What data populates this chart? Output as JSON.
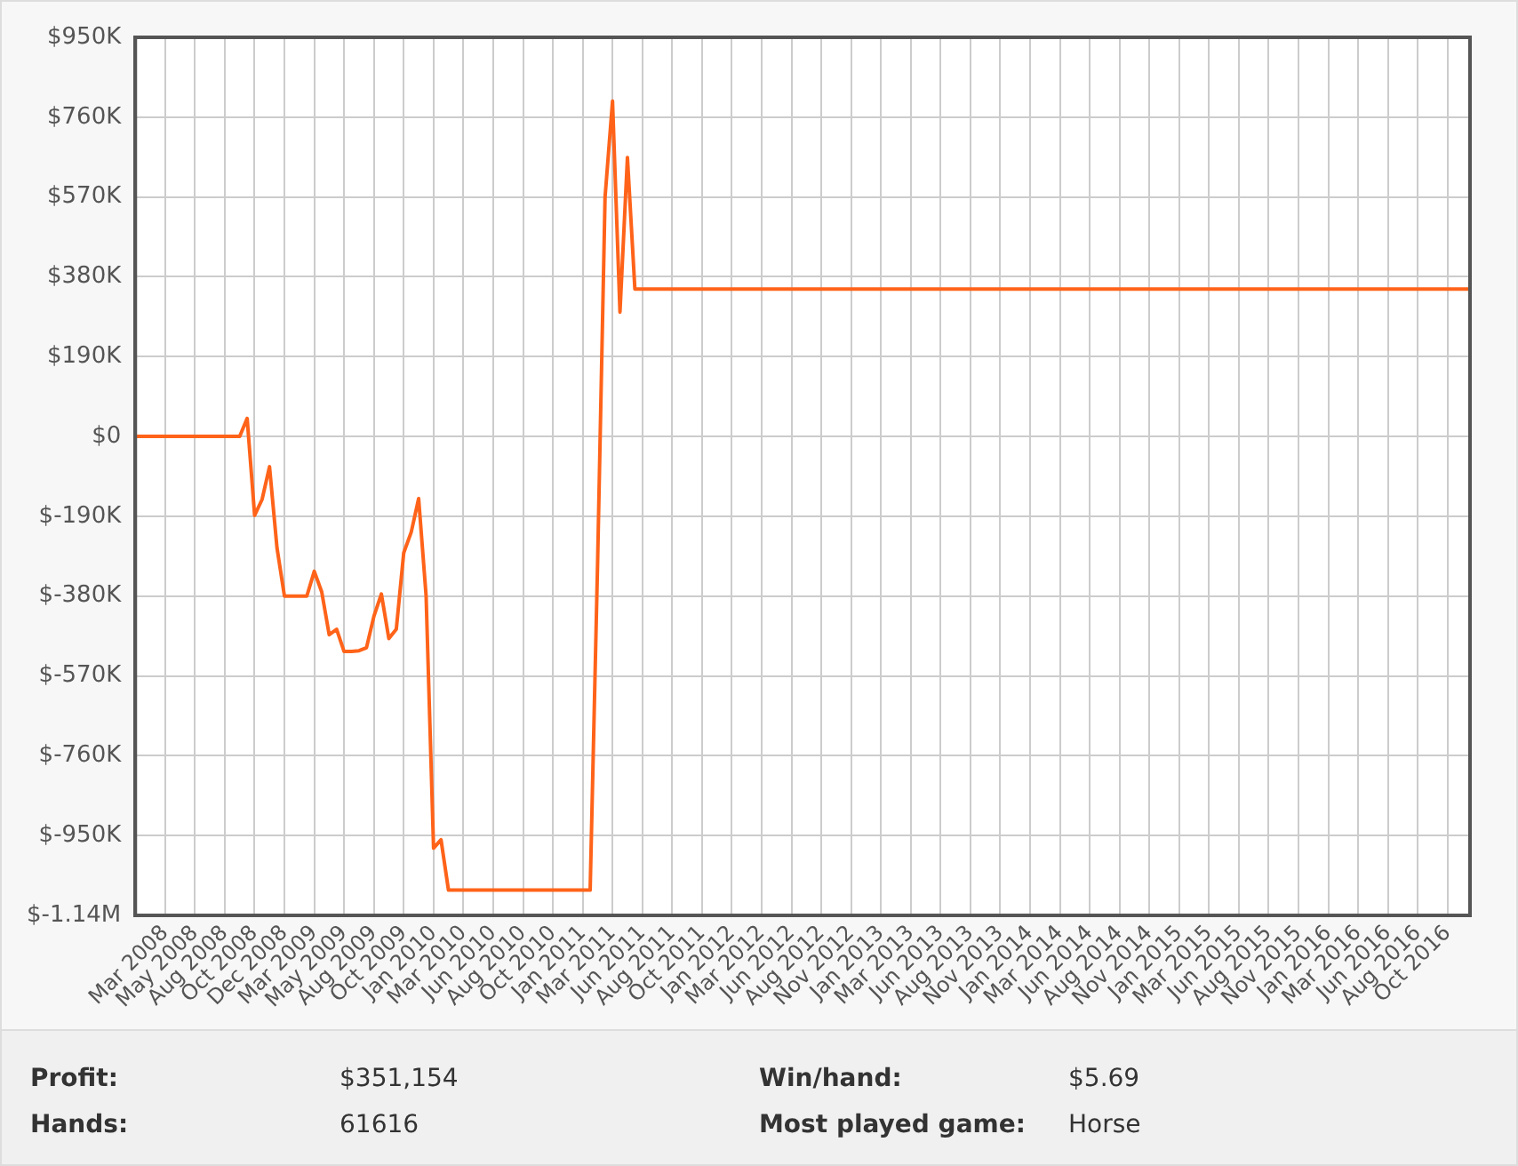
{
  "chart_data": {
    "type": "line",
    "categories": [
      null,
      null,
      null,
      null,
      "Mar 2008",
      null,
      null,
      null,
      "May 2008",
      null,
      null,
      null,
      "Aug 2008",
      null,
      null,
      null,
      "Oct 2008",
      null,
      null,
      null,
      "Dec 2008",
      null,
      null,
      null,
      "Mar 2009",
      null,
      null,
      null,
      "May 2009",
      null,
      null,
      null,
      "Aug 2009",
      null,
      null,
      null,
      "Oct 2009",
      null,
      null,
      null,
      "Jan 2010",
      null,
      null,
      null,
      "Mar 2010",
      null,
      null,
      null,
      "Jun 2010",
      null,
      null,
      null,
      "Aug 2010",
      null,
      null,
      null,
      "Oct 2010",
      null,
      null,
      null,
      "Jan 2011",
      null,
      null,
      null,
      "Mar 2011",
      null,
      null,
      null,
      "Jun 2011",
      null,
      null,
      null,
      "Aug 2011",
      null,
      null,
      null,
      "Oct 2011",
      null,
      null,
      null,
      "Jan 2012",
      null,
      null,
      null,
      "Mar 2012",
      null,
      null,
      null,
      "Jun 2012",
      null,
      null,
      null,
      "Aug 2012",
      null,
      null,
      null,
      "Nov 2012",
      null,
      null,
      null,
      "Jan 2013",
      null,
      null,
      null,
      "Mar 2013",
      null,
      null,
      null,
      "Jun 2013",
      null,
      null,
      null,
      "Aug 2013",
      null,
      null,
      null,
      "Nov 2013",
      null,
      null,
      null,
      "Jan 2014",
      null,
      null,
      null,
      "Mar 2014",
      null,
      null,
      null,
      "Jun 2014",
      null,
      null,
      null,
      "Aug 2014",
      null,
      null,
      null,
      "Nov 2014",
      null,
      null,
      null,
      "Jan 2015",
      null,
      null,
      null,
      "Mar 2015",
      null,
      null,
      null,
      "Jun 2015",
      null,
      null,
      null,
      "Aug 2015",
      null,
      null,
      null,
      "Nov 2015",
      null,
      null,
      null,
      "Jan 2016",
      null,
      null,
      null,
      "Mar 2016",
      null,
      null,
      null,
      "Jun 2016",
      null,
      null,
      null,
      "Aug 2016",
      null,
      null,
      null,
      "Oct 2016",
      null,
      null,
      null
    ],
    "series": [
      {
        "color": "#ff6319",
        "values": [
          0,
          0,
          0,
          0,
          0,
          0,
          0,
          0,
          0,
          0,
          0,
          0,
          0,
          0,
          0,
          43000,
          -188000,
          -150000,
          -72000,
          -265000,
          -380000,
          -380000,
          -380000,
          -380000,
          -321000,
          -370000,
          -472000,
          -459000,
          -512000,
          -512000,
          -510000,
          -503000,
          -428000,
          -375000,
          -481000,
          -459000,
          -277000,
          -228000,
          -148000,
          -380000,
          -980000,
          -960000,
          -1080000,
          -1080000,
          -1080000,
          -1080000,
          -1080000,
          -1080000,
          -1080000,
          -1080000,
          -1080000,
          -1080000,
          -1080000,
          -1080000,
          -1080000,
          -1080000,
          -1080000,
          -1080000,
          -1080000,
          -1080000,
          -1080000,
          -1080000,
          -300000,
          570000,
          798000,
          296000,
          664000,
          351000,
          351000,
          351000,
          351000,
          351000,
          351000,
          351000,
          351000,
          351000,
          351000,
          351000,
          351000,
          351000,
          351000,
          351000,
          351000,
          351000,
          351000,
          351000,
          351000,
          351000,
          351000,
          351000,
          351000,
          351000,
          351000,
          351000,
          351000,
          351000,
          351000,
          351000,
          351000,
          351000,
          351000,
          351000,
          351000,
          351000,
          351000,
          351000,
          351000,
          351000,
          351000,
          351000,
          351000,
          351000,
          351000,
          351000,
          351000,
          351000,
          351000,
          351000,
          351000,
          351000,
          351000,
          351000,
          351000,
          351000,
          351000,
          351000,
          351000,
          351000,
          351000,
          351000,
          351000,
          351000,
          351000,
          351000,
          351000,
          351000,
          351000,
          351000,
          351000,
          351000,
          351000,
          351000,
          351000,
          351000,
          351000,
          351000,
          351000,
          351000,
          351000,
          351000,
          351000,
          351000,
          351000,
          351000,
          351000,
          351000,
          351000,
          351000,
          351000,
          351000,
          351000,
          351000,
          351000,
          351000,
          351000,
          351000,
          351000,
          351000,
          351000,
          351000,
          351000,
          351000,
          351000,
          351000,
          351000,
          351000,
          351000,
          351000,
          351000,
          351000
        ]
      }
    ],
    "ylim": [
      -1140000,
      950000
    ],
    "yticks": [
      {
        "value": 950000,
        "label": "$950K"
      },
      {
        "value": 760000,
        "label": "$760K"
      },
      {
        "value": 570000,
        "label": "$570K"
      },
      {
        "value": 380000,
        "label": "$380K"
      },
      {
        "value": 190000,
        "label": "$190K"
      },
      {
        "value": 0,
        "label": "$0"
      },
      {
        "value": -190000,
        "label": "$-190K"
      },
      {
        "value": -380000,
        "label": "$-380K"
      },
      {
        "value": -570000,
        "label": "$-570K"
      },
      {
        "value": -760000,
        "label": "$-760K"
      },
      {
        "value": -950000,
        "label": "$-950K"
      },
      {
        "value": -1140000,
        "label": "$-1.14M"
      }
    ],
    "grid": true,
    "line_style": "solid",
    "annotations": [
      "Profit:",
      "$351,154",
      "Win/hand:",
      "$5.69",
      "Hands:",
      "61616",
      "Most played game:",
      "Horse"
    ]
  }
}
